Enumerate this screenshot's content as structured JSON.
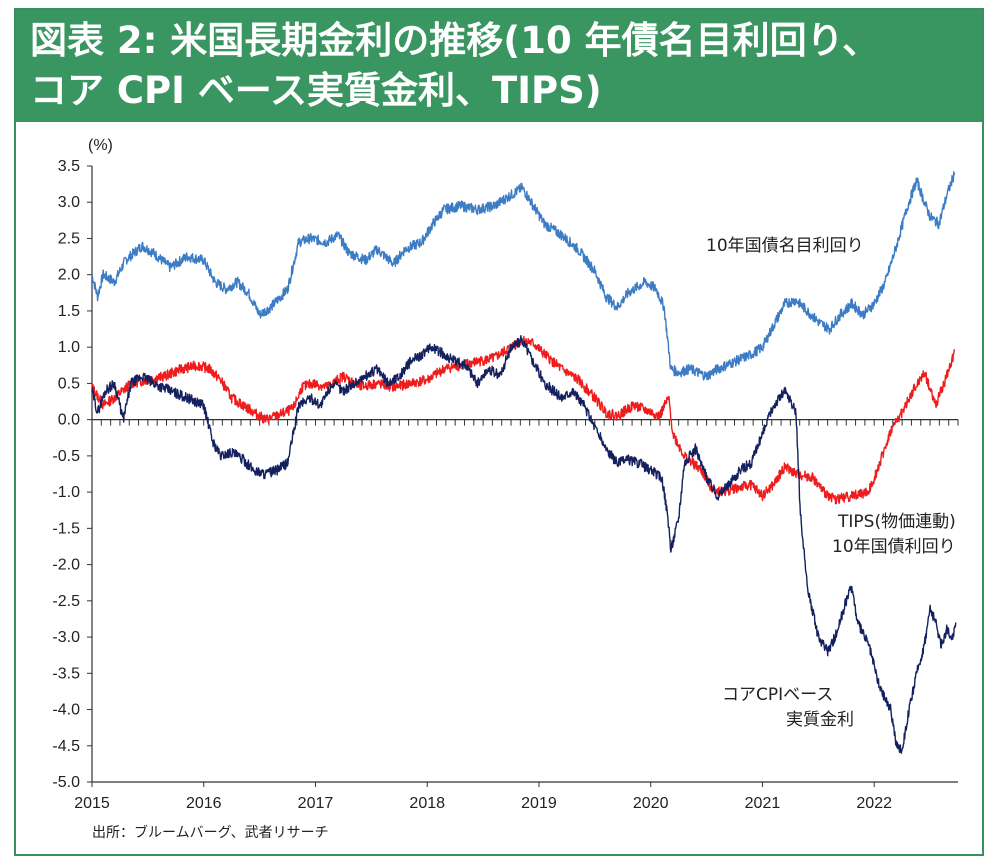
{
  "title": {
    "line1": "図表 2: 米国長期金利の推移(10 年債名目利回り、",
    "line2": "コア CPI ベース実質金利、TIPS)"
  },
  "source": "出所：ブルームバーグ、武者リサーチ",
  "colors": {
    "header_bg": "#3a9660",
    "nominal": "#3b7cc4",
    "tips": "#ee1c1c",
    "real": "#14215e"
  },
  "chart_data": {
    "type": "line",
    "ylabel": "(%)",
    "ylim": [
      -5.0,
      3.5
    ],
    "yticks": [
      "3.5",
      "3.0",
      "2.5",
      "2.0",
      "1.5",
      "1.0",
      "0.5",
      "0.0",
      "-0.5",
      "-1.0",
      "-1.5",
      "-2.0",
      "-2.5",
      "-3.0",
      "-3.5",
      "-4.0",
      "-4.5",
      "-5.0"
    ],
    "xlim": [
      2015.0,
      2022.75
    ],
    "xticks": [
      "2015",
      "2016",
      "2017",
      "2018",
      "2019",
      "2020",
      "2021",
      "2022"
    ],
    "series": [
      {
        "name": "10年国債名目利回り",
        "color": "#3b7cc4",
        "points": [
          [
            2015.0,
            2.0
          ],
          [
            2015.05,
            1.7
          ],
          [
            2015.1,
            2.0
          ],
          [
            2015.2,
            1.9
          ],
          [
            2015.3,
            2.2
          ],
          [
            2015.45,
            2.4
          ],
          [
            2015.55,
            2.3
          ],
          [
            2015.7,
            2.1
          ],
          [
            2015.85,
            2.25
          ],
          [
            2016.0,
            2.2
          ],
          [
            2016.1,
            1.9
          ],
          [
            2016.2,
            1.8
          ],
          [
            2016.3,
            1.9
          ],
          [
            2016.4,
            1.75
          ],
          [
            2016.5,
            1.45
          ],
          [
            2016.6,
            1.55
          ],
          [
            2016.75,
            1.8
          ],
          [
            2016.85,
            2.45
          ],
          [
            2016.95,
            2.5
          ],
          [
            2017.1,
            2.45
          ],
          [
            2017.2,
            2.55
          ],
          [
            2017.3,
            2.3
          ],
          [
            2017.45,
            2.2
          ],
          [
            2017.55,
            2.35
          ],
          [
            2017.7,
            2.15
          ],
          [
            2017.8,
            2.35
          ],
          [
            2017.95,
            2.45
          ],
          [
            2018.05,
            2.7
          ],
          [
            2018.15,
            2.9
          ],
          [
            2018.3,
            2.95
          ],
          [
            2018.45,
            2.9
          ],
          [
            2018.6,
            2.95
          ],
          [
            2018.75,
            3.1
          ],
          [
            2018.85,
            3.2
          ],
          [
            2018.95,
            2.95
          ],
          [
            2019.05,
            2.7
          ],
          [
            2019.2,
            2.55
          ],
          [
            2019.35,
            2.35
          ],
          [
            2019.5,
            2.05
          ],
          [
            2019.6,
            1.7
          ],
          [
            2019.7,
            1.55
          ],
          [
            2019.8,
            1.75
          ],
          [
            2019.95,
            1.9
          ],
          [
            2020.05,
            1.8
          ],
          [
            2020.12,
            1.55
          ],
          [
            2020.18,
            0.7
          ],
          [
            2020.25,
            0.65
          ],
          [
            2020.35,
            0.7
          ],
          [
            2020.5,
            0.6
          ],
          [
            2020.6,
            0.7
          ],
          [
            2020.75,
            0.8
          ],
          [
            2020.9,
            0.9
          ],
          [
            2021.0,
            1.0
          ],
          [
            2021.1,
            1.3
          ],
          [
            2021.2,
            1.6
          ],
          [
            2021.3,
            1.65
          ],
          [
            2021.4,
            1.5
          ],
          [
            2021.5,
            1.35
          ],
          [
            2021.6,
            1.25
          ],
          [
            2021.7,
            1.45
          ],
          [
            2021.8,
            1.6
          ],
          [
            2021.9,
            1.45
          ],
          [
            2022.0,
            1.6
          ],
          [
            2022.1,
            1.9
          ],
          [
            2022.2,
            2.4
          ],
          [
            2022.3,
            2.95
          ],
          [
            2022.38,
            3.3
          ],
          [
            2022.45,
            3.0
          ],
          [
            2022.5,
            2.8
          ],
          [
            2022.58,
            2.7
          ],
          [
            2022.65,
            3.1
          ],
          [
            2022.72,
            3.4
          ]
        ]
      },
      {
        "name": "TIPS(物価連動)10年国債利回り",
        "color": "#ee1c1c",
        "points": [
          [
            2015.0,
            0.45
          ],
          [
            2015.1,
            0.2
          ],
          [
            2015.2,
            0.3
          ],
          [
            2015.35,
            0.5
          ],
          [
            2015.5,
            0.55
          ],
          [
            2015.65,
            0.6
          ],
          [
            2015.8,
            0.7
          ],
          [
            2015.95,
            0.75
          ],
          [
            2016.05,
            0.7
          ],
          [
            2016.15,
            0.55
          ],
          [
            2016.25,
            0.3
          ],
          [
            2016.35,
            0.2
          ],
          [
            2016.45,
            0.1
          ],
          [
            2016.55,
            0.0
          ],
          [
            2016.65,
            0.05
          ],
          [
            2016.8,
            0.15
          ],
          [
            2016.88,
            0.45
          ],
          [
            2016.98,
            0.5
          ],
          [
            2017.1,
            0.45
          ],
          [
            2017.25,
            0.6
          ],
          [
            2017.4,
            0.45
          ],
          [
            2017.55,
            0.5
          ],
          [
            2017.7,
            0.45
          ],
          [
            2017.85,
            0.5
          ],
          [
            2018.0,
            0.55
          ],
          [
            2018.15,
            0.7
          ],
          [
            2018.3,
            0.75
          ],
          [
            2018.45,
            0.8
          ],
          [
            2018.6,
            0.85
          ],
          [
            2018.75,
            1.0
          ],
          [
            2018.85,
            1.1
          ],
          [
            2018.95,
            1.05
          ],
          [
            2019.05,
            0.9
          ],
          [
            2019.2,
            0.7
          ],
          [
            2019.35,
            0.55
          ],
          [
            2019.5,
            0.3
          ],
          [
            2019.6,
            0.1
          ],
          [
            2019.7,
            0.05
          ],
          [
            2019.85,
            0.2
          ],
          [
            2020.0,
            0.1
          ],
          [
            2020.08,
            0.05
          ],
          [
            2020.16,
            0.3
          ],
          [
            2020.2,
            -0.2
          ],
          [
            2020.3,
            -0.5
          ],
          [
            2020.45,
            -0.7
          ],
          [
            2020.55,
            -0.95
          ],
          [
            2020.65,
            -1.0
          ],
          [
            2020.75,
            -0.95
          ],
          [
            2020.9,
            -0.9
          ],
          [
            2021.0,
            -1.05
          ],
          [
            2021.1,
            -0.9
          ],
          [
            2021.2,
            -0.65
          ],
          [
            2021.3,
            -0.75
          ],
          [
            2021.45,
            -0.8
          ],
          [
            2021.55,
            -1.0
          ],
          [
            2021.65,
            -1.1
          ],
          [
            2021.8,
            -1.05
          ],
          [
            2021.95,
            -1.0
          ],
          [
            2022.05,
            -0.6
          ],
          [
            2022.15,
            -0.15
          ],
          [
            2022.25,
            0.1
          ],
          [
            2022.35,
            0.4
          ],
          [
            2022.45,
            0.65
          ],
          [
            2022.55,
            0.2
          ],
          [
            2022.65,
            0.6
          ],
          [
            2022.72,
            0.95
          ]
        ]
      },
      {
        "name": "コアCPIベース実質金利",
        "color": "#14215e",
        "points": [
          [
            2015.0,
            0.4
          ],
          [
            2015.05,
            0.1
          ],
          [
            2015.12,
            0.4
          ],
          [
            2015.2,
            0.5
          ],
          [
            2015.28,
            0.0
          ],
          [
            2015.35,
            0.5
          ],
          [
            2015.45,
            0.6
          ],
          [
            2015.55,
            0.5
          ],
          [
            2015.7,
            0.4
          ],
          [
            2015.85,
            0.3
          ],
          [
            2016.0,
            0.2
          ],
          [
            2016.08,
            -0.3
          ],
          [
            2016.15,
            -0.5
          ],
          [
            2016.25,
            -0.45
          ],
          [
            2016.35,
            -0.55
          ],
          [
            2016.45,
            -0.7
          ],
          [
            2016.55,
            -0.75
          ],
          [
            2016.65,
            -0.7
          ],
          [
            2016.75,
            -0.6
          ],
          [
            2016.85,
            0.2
          ],
          [
            2016.95,
            0.3
          ],
          [
            2017.05,
            0.2
          ],
          [
            2017.15,
            0.5
          ],
          [
            2017.25,
            0.4
          ],
          [
            2017.35,
            0.5
          ],
          [
            2017.45,
            0.6
          ],
          [
            2017.55,
            0.7
          ],
          [
            2017.65,
            0.5
          ],
          [
            2017.75,
            0.6
          ],
          [
            2017.85,
            0.8
          ],
          [
            2017.95,
            0.9
          ],
          [
            2018.05,
            1.0
          ],
          [
            2018.15,
            0.9
          ],
          [
            2018.25,
            0.8
          ],
          [
            2018.35,
            0.75
          ],
          [
            2018.45,
            0.5
          ],
          [
            2018.55,
            0.7
          ],
          [
            2018.65,
            0.6
          ],
          [
            2018.75,
            1.0
          ],
          [
            2018.85,
            1.1
          ],
          [
            2018.95,
            0.8
          ],
          [
            2019.05,
            0.5
          ],
          [
            2019.2,
            0.3
          ],
          [
            2019.3,
            0.4
          ],
          [
            2019.4,
            0.2
          ],
          [
            2019.5,
            -0.1
          ],
          [
            2019.6,
            -0.4
          ],
          [
            2019.7,
            -0.6
          ],
          [
            2019.8,
            -0.55
          ],
          [
            2019.9,
            -0.6
          ],
          [
            2020.0,
            -0.7
          ],
          [
            2020.1,
            -0.8
          ],
          [
            2020.15,
            -1.3
          ],
          [
            2020.18,
            -1.8
          ],
          [
            2020.25,
            -1.35
          ],
          [
            2020.3,
            -0.6
          ],
          [
            2020.4,
            -0.4
          ],
          [
            2020.5,
            -0.8
          ],
          [
            2020.6,
            -1.05
          ],
          [
            2020.7,
            -0.9
          ],
          [
            2020.8,
            -0.7
          ],
          [
            2020.9,
            -0.6
          ],
          [
            2021.0,
            -0.2
          ],
          [
            2021.1,
            0.2
          ],
          [
            2021.2,
            0.4
          ],
          [
            2021.3,
            0.1
          ],
          [
            2021.34,
            -1.3
          ],
          [
            2021.4,
            -2.3
          ],
          [
            2021.5,
            -3.0
          ],
          [
            2021.58,
            -3.2
          ],
          [
            2021.65,
            -3.0
          ],
          [
            2021.75,
            -2.5
          ],
          [
            2021.8,
            -2.3
          ],
          [
            2021.85,
            -2.8
          ],
          [
            2021.95,
            -3.1
          ],
          [
            2022.05,
            -3.7
          ],
          [
            2022.15,
            -4.0
          ],
          [
            2022.2,
            -4.5
          ],
          [
            2022.25,
            -4.55
          ],
          [
            2022.3,
            -4.1
          ],
          [
            2022.38,
            -3.5
          ],
          [
            2022.45,
            -3.1
          ],
          [
            2022.5,
            -2.6
          ],
          [
            2022.55,
            -2.8
          ],
          [
            2022.6,
            -3.1
          ],
          [
            2022.65,
            -2.9
          ],
          [
            2022.7,
            -3.0
          ],
          [
            2022.73,
            -2.8
          ]
        ]
      }
    ],
    "annotations": [
      {
        "text": "10年国債名目利回り",
        "series": "nominal"
      },
      {
        "text": "TIPS(物価連動)",
        "series": "tips"
      },
      {
        "text": "10年国債利回り",
        "series": "tips"
      },
      {
        "text": "コアCPIベース",
        "series": "real"
      },
      {
        "text": "実質金利",
        "series": "real"
      }
    ]
  }
}
